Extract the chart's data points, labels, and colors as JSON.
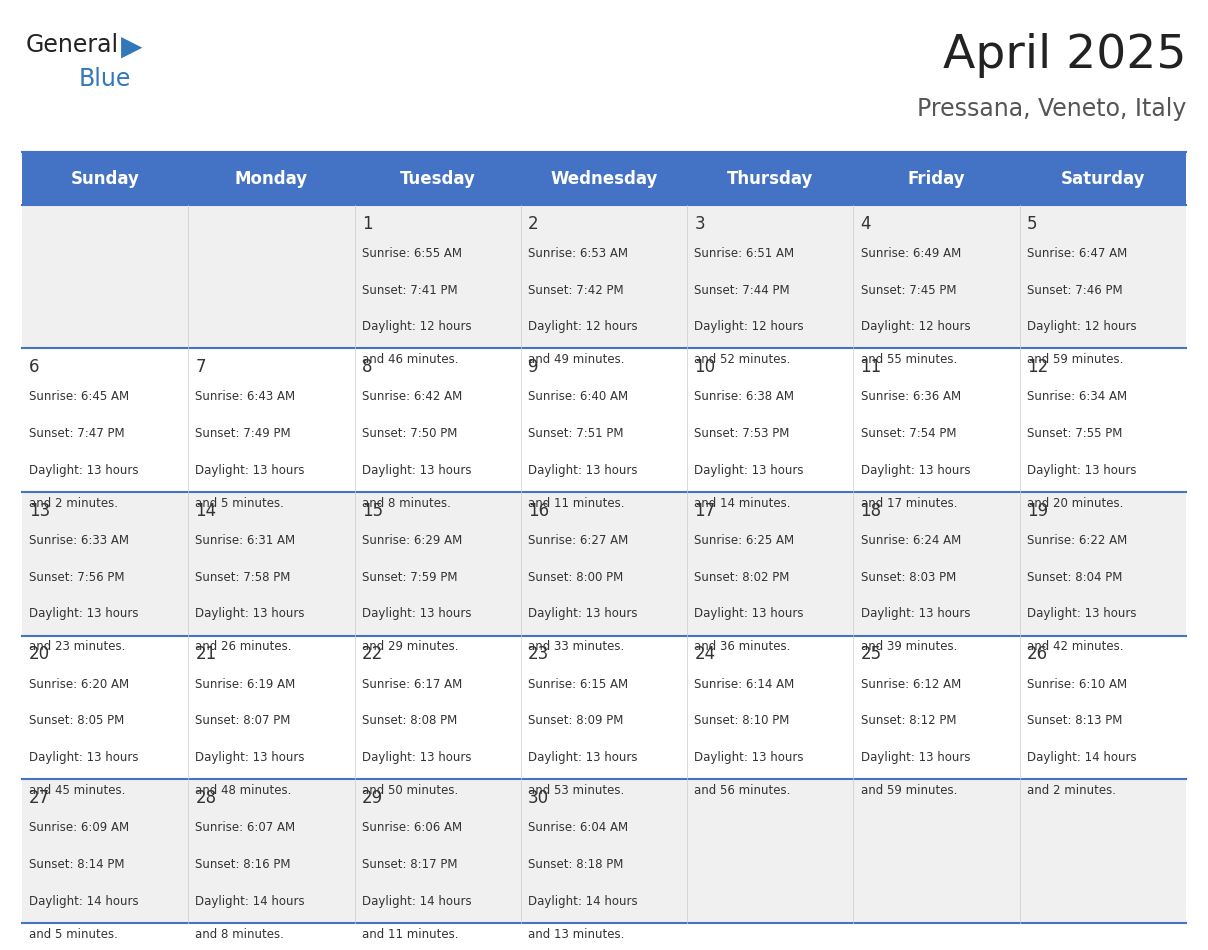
{
  "title": "April 2025",
  "subtitle": "Pressana, Veneto, Italy",
  "header_bg": "#4472C4",
  "header_text_color": "#FFFFFF",
  "days_of_week": [
    "Sunday",
    "Monday",
    "Tuesday",
    "Wednesday",
    "Thursday",
    "Friday",
    "Saturday"
  ],
  "row_bg_odd": "#F0F0F0",
  "row_bg_even": "#FFFFFF",
  "cell_text_color": "#333333",
  "divider_color": "#4472C4",
  "num_rows": 5,
  "num_cols": 7,
  "calendar_data": [
    [
      {
        "day": "",
        "sunrise": "",
        "sunset": "",
        "daylight": ""
      },
      {
        "day": "",
        "sunrise": "",
        "sunset": "",
        "daylight": ""
      },
      {
        "day": "1",
        "sunrise": "Sunrise: 6:55 AM",
        "sunset": "Sunset: 7:41 PM",
        "daylight": "Daylight: 12 hours\nand 46 minutes."
      },
      {
        "day": "2",
        "sunrise": "Sunrise: 6:53 AM",
        "sunset": "Sunset: 7:42 PM",
        "daylight": "Daylight: 12 hours\nand 49 minutes."
      },
      {
        "day": "3",
        "sunrise": "Sunrise: 6:51 AM",
        "sunset": "Sunset: 7:44 PM",
        "daylight": "Daylight: 12 hours\nand 52 minutes."
      },
      {
        "day": "4",
        "sunrise": "Sunrise: 6:49 AM",
        "sunset": "Sunset: 7:45 PM",
        "daylight": "Daylight: 12 hours\nand 55 minutes."
      },
      {
        "day": "5",
        "sunrise": "Sunrise: 6:47 AM",
        "sunset": "Sunset: 7:46 PM",
        "daylight": "Daylight: 12 hours\nand 59 minutes."
      }
    ],
    [
      {
        "day": "6",
        "sunrise": "Sunrise: 6:45 AM",
        "sunset": "Sunset: 7:47 PM",
        "daylight": "Daylight: 13 hours\nand 2 minutes."
      },
      {
        "day": "7",
        "sunrise": "Sunrise: 6:43 AM",
        "sunset": "Sunset: 7:49 PM",
        "daylight": "Daylight: 13 hours\nand 5 minutes."
      },
      {
        "day": "8",
        "sunrise": "Sunrise: 6:42 AM",
        "sunset": "Sunset: 7:50 PM",
        "daylight": "Daylight: 13 hours\nand 8 minutes."
      },
      {
        "day": "9",
        "sunrise": "Sunrise: 6:40 AM",
        "sunset": "Sunset: 7:51 PM",
        "daylight": "Daylight: 13 hours\nand 11 minutes."
      },
      {
        "day": "10",
        "sunrise": "Sunrise: 6:38 AM",
        "sunset": "Sunset: 7:53 PM",
        "daylight": "Daylight: 13 hours\nand 14 minutes."
      },
      {
        "day": "11",
        "sunrise": "Sunrise: 6:36 AM",
        "sunset": "Sunset: 7:54 PM",
        "daylight": "Daylight: 13 hours\nand 17 minutes."
      },
      {
        "day": "12",
        "sunrise": "Sunrise: 6:34 AM",
        "sunset": "Sunset: 7:55 PM",
        "daylight": "Daylight: 13 hours\nand 20 minutes."
      }
    ],
    [
      {
        "day": "13",
        "sunrise": "Sunrise: 6:33 AM",
        "sunset": "Sunset: 7:56 PM",
        "daylight": "Daylight: 13 hours\nand 23 minutes."
      },
      {
        "day": "14",
        "sunrise": "Sunrise: 6:31 AM",
        "sunset": "Sunset: 7:58 PM",
        "daylight": "Daylight: 13 hours\nand 26 minutes."
      },
      {
        "day": "15",
        "sunrise": "Sunrise: 6:29 AM",
        "sunset": "Sunset: 7:59 PM",
        "daylight": "Daylight: 13 hours\nand 29 minutes."
      },
      {
        "day": "16",
        "sunrise": "Sunrise: 6:27 AM",
        "sunset": "Sunset: 8:00 PM",
        "daylight": "Daylight: 13 hours\nand 33 minutes."
      },
      {
        "day": "17",
        "sunrise": "Sunrise: 6:25 AM",
        "sunset": "Sunset: 8:02 PM",
        "daylight": "Daylight: 13 hours\nand 36 minutes."
      },
      {
        "day": "18",
        "sunrise": "Sunrise: 6:24 AM",
        "sunset": "Sunset: 8:03 PM",
        "daylight": "Daylight: 13 hours\nand 39 minutes."
      },
      {
        "day": "19",
        "sunrise": "Sunrise: 6:22 AM",
        "sunset": "Sunset: 8:04 PM",
        "daylight": "Daylight: 13 hours\nand 42 minutes."
      }
    ],
    [
      {
        "day": "20",
        "sunrise": "Sunrise: 6:20 AM",
        "sunset": "Sunset: 8:05 PM",
        "daylight": "Daylight: 13 hours\nand 45 minutes."
      },
      {
        "day": "21",
        "sunrise": "Sunrise: 6:19 AM",
        "sunset": "Sunset: 8:07 PM",
        "daylight": "Daylight: 13 hours\nand 48 minutes."
      },
      {
        "day": "22",
        "sunrise": "Sunrise: 6:17 AM",
        "sunset": "Sunset: 8:08 PM",
        "daylight": "Daylight: 13 hours\nand 50 minutes."
      },
      {
        "day": "23",
        "sunrise": "Sunrise: 6:15 AM",
        "sunset": "Sunset: 8:09 PM",
        "daylight": "Daylight: 13 hours\nand 53 minutes."
      },
      {
        "day": "24",
        "sunrise": "Sunrise: 6:14 AM",
        "sunset": "Sunset: 8:10 PM",
        "daylight": "Daylight: 13 hours\nand 56 minutes."
      },
      {
        "day": "25",
        "sunrise": "Sunrise: 6:12 AM",
        "sunset": "Sunset: 8:12 PM",
        "daylight": "Daylight: 13 hours\nand 59 minutes."
      },
      {
        "day": "26",
        "sunrise": "Sunrise: 6:10 AM",
        "sunset": "Sunset: 8:13 PM",
        "daylight": "Daylight: 14 hours\nand 2 minutes."
      }
    ],
    [
      {
        "day": "27",
        "sunrise": "Sunrise: 6:09 AM",
        "sunset": "Sunset: 8:14 PM",
        "daylight": "Daylight: 14 hours\nand 5 minutes."
      },
      {
        "day": "28",
        "sunrise": "Sunrise: 6:07 AM",
        "sunset": "Sunset: 8:16 PM",
        "daylight": "Daylight: 14 hours\nand 8 minutes."
      },
      {
        "day": "29",
        "sunrise": "Sunrise: 6:06 AM",
        "sunset": "Sunset: 8:17 PM",
        "daylight": "Daylight: 14 hours\nand 11 minutes."
      },
      {
        "day": "30",
        "sunrise": "Sunrise: 6:04 AM",
        "sunset": "Sunset: 8:18 PM",
        "daylight": "Daylight: 14 hours\nand 13 minutes."
      },
      {
        "day": "",
        "sunrise": "",
        "sunset": "",
        "daylight": ""
      },
      {
        "day": "",
        "sunrise": "",
        "sunset": "",
        "daylight": ""
      },
      {
        "day": "",
        "sunrise": "",
        "sunset": "",
        "daylight": ""
      }
    ]
  ]
}
